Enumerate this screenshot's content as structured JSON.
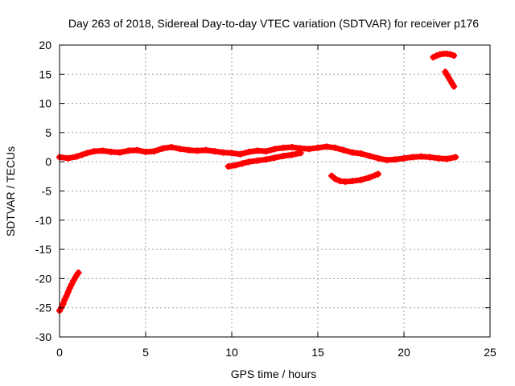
{
  "chart_data": {
    "type": "scatter",
    "title": "Day 263 of 2018, Sidereal Day-to-day VTEC variation (SDTVAR) for receiver p176",
    "xlabel": "GPS time / hours",
    "ylabel": "SDTVAR / TECUs",
    "xlim": [
      0,
      25
    ],
    "ylim": [
      -30,
      20
    ],
    "xticks": [
      0,
      5,
      10,
      15,
      20,
      25
    ],
    "yticks": [
      -30,
      -25,
      -20,
      -15,
      -10,
      -5,
      0,
      5,
      10,
      15,
      20
    ],
    "xtick_labels": [
      "0",
      "5",
      "10",
      "15",
      "20",
      "25"
    ],
    "ytick_labels": [
      "-30",
      "-25",
      "-20",
      "-15",
      "-10",
      "-5",
      "0",
      "5",
      "10",
      "15",
      "20"
    ],
    "grid": true,
    "legend": "none",
    "marker_color": "#ff0000",
    "series": [
      {
        "name": "early-descending-arc",
        "x": [
          0.0,
          0.1,
          0.2,
          0.3,
          0.4,
          0.5,
          0.6,
          0.7,
          0.8,
          0.9,
          1.0,
          1.1
        ],
        "y": [
          -25.5,
          -25.0,
          -24.4,
          -23.6,
          -23.0,
          -22.3,
          -21.6,
          -21.0,
          -20.4,
          -19.9,
          -19.4,
          -19.0
        ]
      },
      {
        "name": "main-band",
        "x": [
          0.0,
          0.5,
          1.0,
          1.3,
          1.6,
          2.0,
          2.5,
          3.0,
          3.5,
          4.0,
          4.5,
          5.0,
          5.5,
          6.0,
          6.5,
          7.0,
          7.5,
          8.0,
          8.5,
          9.0,
          9.5,
          10.0,
          10.5,
          11.0,
          11.5,
          12.0,
          12.5,
          13.0,
          13.5,
          14.0,
          14.5,
          15.0,
          15.5,
          16.0,
          16.5,
          17.0,
          17.5,
          18.0,
          18.5,
          19.0,
          19.5,
          20.0,
          20.5,
          21.0,
          21.5,
          22.0,
          22.5,
          23.0
        ],
        "y": [
          0.8,
          0.6,
          0.9,
          1.2,
          1.5,
          1.8,
          1.9,
          1.7,
          1.6,
          1.9,
          2.0,
          1.7,
          1.8,
          2.3,
          2.5,
          2.2,
          2.0,
          1.9,
          2.0,
          1.8,
          1.6,
          1.5,
          1.3,
          1.7,
          1.9,
          1.8,
          2.2,
          2.4,
          2.5,
          2.3,
          2.2,
          2.4,
          2.6,
          2.4,
          2.0,
          1.6,
          1.4,
          1.0,
          0.6,
          0.3,
          0.4,
          0.6,
          0.8,
          0.9,
          0.8,
          0.6,
          0.5,
          0.8
        ]
      },
      {
        "name": "lower-branch-mid",
        "x": [
          9.8,
          10.2,
          10.6,
          11.0,
          11.5,
          12.0,
          12.5,
          13.0,
          13.5,
          14.0
        ],
        "y": [
          -0.8,
          -0.6,
          -0.3,
          0.0,
          0.2,
          0.4,
          0.7,
          1.0,
          1.2,
          1.5
        ]
      },
      {
        "name": "dip-arc",
        "x": [
          15.8,
          16.0,
          16.3,
          16.6,
          17.0,
          17.5,
          18.0,
          18.5
        ],
        "y": [
          -2.4,
          -2.9,
          -3.3,
          -3.4,
          -3.3,
          -3.1,
          -2.7,
          -2.1
        ]
      },
      {
        "name": "late-high-arc",
        "x": [
          21.7,
          21.9,
          22.1,
          22.3,
          22.5,
          22.7,
          22.9
        ],
        "y": [
          17.9,
          18.2,
          18.4,
          18.5,
          18.5,
          18.4,
          18.2
        ]
      },
      {
        "name": "late-descending",
        "x": [
          22.4,
          22.5,
          22.6,
          22.7,
          22.8,
          22.9
        ],
        "y": [
          15.4,
          14.9,
          14.4,
          13.9,
          13.4,
          12.9
        ]
      }
    ]
  }
}
